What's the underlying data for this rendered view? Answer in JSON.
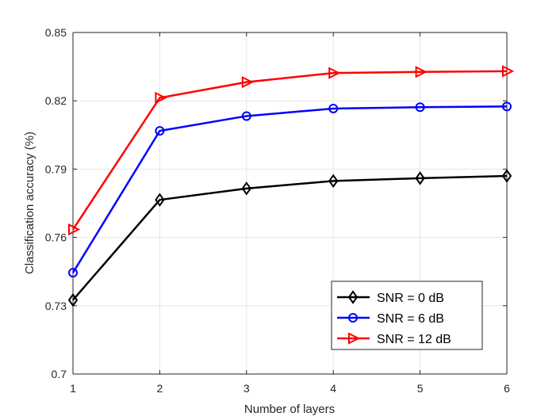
{
  "chart_data": {
    "type": "line",
    "title": "",
    "xlabel": "Number of layers",
    "ylabel": "Classification accuracy (%)",
    "x": [
      1,
      2,
      3,
      4,
      5,
      6
    ],
    "xlim": [
      1,
      6
    ],
    "ylim": [
      0.7,
      0.85
    ],
    "xticks": [
      "1",
      "2",
      "3",
      "4",
      "5",
      "6"
    ],
    "yticks": [
      "0.7",
      "0.73",
      "0.76",
      "0.79",
      "0.82",
      "0.85"
    ],
    "grid": true,
    "legend_position": "bottom-right",
    "series": [
      {
        "name": "SNR = 0 dB",
        "color": "#000000",
        "marker": "diamond",
        "values": [
          0.7325,
          0.7765,
          0.7815,
          0.7848,
          0.786,
          0.787
        ]
      },
      {
        "name": "SNR = 6 dB",
        "color": "#0000ff",
        "marker": "circle",
        "values": [
          0.7445,
          0.8068,
          0.8133,
          0.8166,
          0.8172,
          0.8175
        ]
      },
      {
        "name": "SNR = 12 dB",
        "color": "#ff0000",
        "marker": "triangle-right",
        "values": [
          0.7635,
          0.8213,
          0.8282,
          0.8322,
          0.8327,
          0.833
        ]
      }
    ]
  }
}
